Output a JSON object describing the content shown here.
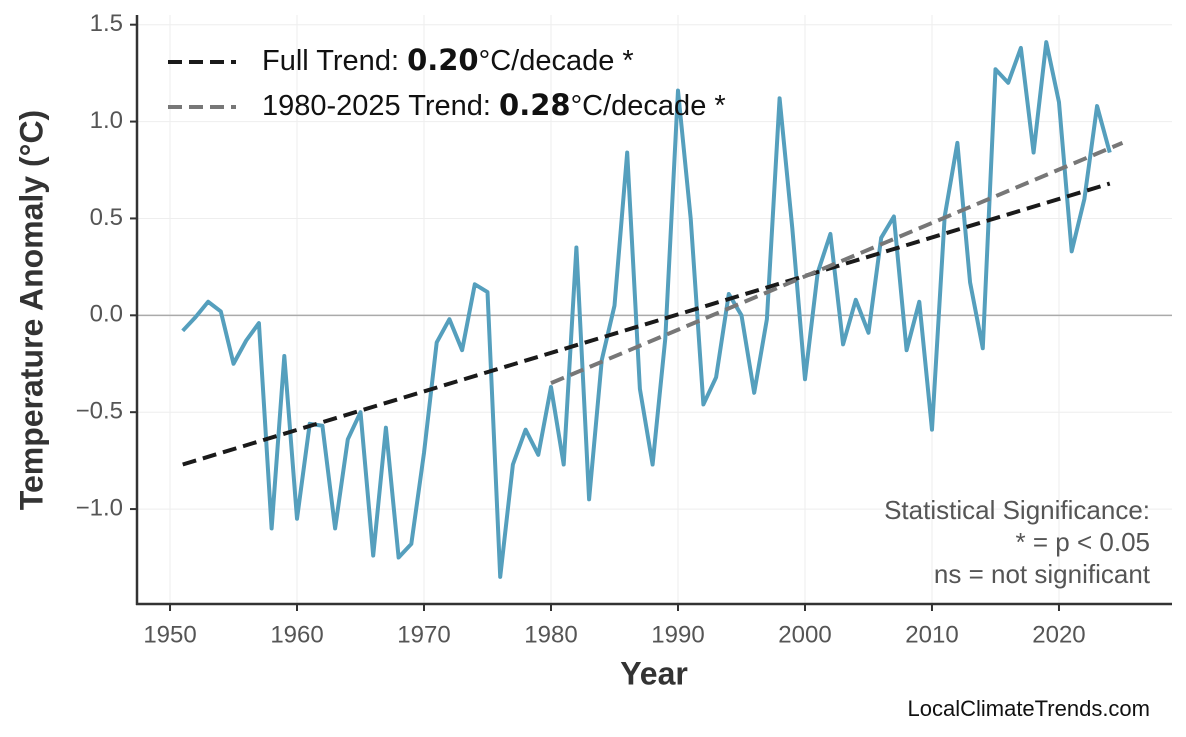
{
  "chart_data": {
    "type": "line",
    "x_label": "Year",
    "y_label": "Temperature Anomaly (°C)",
    "x": [
      1951,
      1952,
      1953,
      1954,
      1955,
      1956,
      1957,
      1958,
      1959,
      1960,
      1961,
      1962,
      1963,
      1964,
      1965,
      1966,
      1967,
      1968,
      1969,
      1970,
      1971,
      1972,
      1973,
      1974,
      1975,
      1976,
      1977,
      1978,
      1979,
      1980,
      1981,
      1982,
      1983,
      1984,
      1985,
      1986,
      1987,
      1988,
      1989,
      1990,
      1991,
      1992,
      1993,
      1994,
      1995,
      1996,
      1997,
      1998,
      1999,
      2000,
      2001,
      2002,
      2003,
      2004,
      2005,
      2006,
      2007,
      2008,
      2009,
      2010,
      2011,
      2012,
      2013,
      2014,
      2015,
      2016,
      2017,
      2018,
      2019,
      2020,
      2021,
      2022,
      2023,
      2024
    ],
    "series": [
      {
        "color": "#559fbd",
        "values": [
          -0.08,
          -0.01,
          0.07,
          0.02,
          -0.25,
          -0.13,
          -0.04,
          -1.1,
          -0.21,
          -1.05,
          -0.56,
          -0.57,
          -1.1,
          -0.64,
          -0.5,
          -1.24,
          -0.58,
          -1.25,
          -1.18,
          -0.71,
          -0.14,
          -0.02,
          -0.18,
          0.16,
          0.12,
          -1.35,
          -0.77,
          -0.59,
          -0.72,
          -0.37,
          -0.77,
          0.35,
          -0.95,
          -0.23,
          0.05,
          0.84,
          -0.38,
          -0.77,
          -0.12,
          1.16,
          0.5,
          -0.46,
          -0.32,
          0.11,
          0.0,
          -0.4,
          -0.02,
          1.12,
          0.45,
          -0.33,
          0.22,
          0.42,
          -0.15,
          0.08,
          -0.09,
          0.4,
          0.51,
          -0.18,
          0.07,
          -0.59,
          0.51,
          0.89,
          0.17,
          -0.17,
          1.27,
          1.2,
          1.38,
          0.84,
          1.41,
          1.1,
          0.33,
          0.6,
          1.08,
          0.84
        ]
      }
    ],
    "trends": [
      {
        "label": "Full Trend: ",
        "rate": "0.20",
        "unit": "°C/decade *",
        "color": "#1a1a1a",
        "x": [
          1951,
          2024
        ],
        "values": [
          -0.77,
          0.68
        ]
      },
      {
        "label": "1980-2025 Trend: ",
        "rate": "0.28",
        "unit": "°C/decade *",
        "color": "#777777",
        "x": [
          1980,
          2025
        ],
        "values": [
          -0.35,
          0.89
        ]
      }
    ],
    "hline": 0,
    "annotation": [
      "Statistical Significance:",
      "* = p < 0.05",
      "ns = not significant"
    ],
    "source": "LocalClimateTrends.com",
    "xlim": [
      1947.4,
      2028.9
    ],
    "ylim": [
      -1.49,
      1.55
    ],
    "xticks": [
      1950,
      1960,
      1970,
      1980,
      1990,
      2000,
      2010,
      2020
    ],
    "yticks": [
      {
        "value": -1.0,
        "label": "−1.0"
      },
      {
        "value": -0.5,
        "label": "−0.5"
      },
      {
        "value": 0,
        "label": "0.0"
      },
      0.5,
      {
        "value": 1.0,
        "label": "1.0"
      },
      {
        "value": 1.5,
        "label": "1.5"
      }
    ],
    "grid": true,
    "legend_position": "upper left"
  }
}
